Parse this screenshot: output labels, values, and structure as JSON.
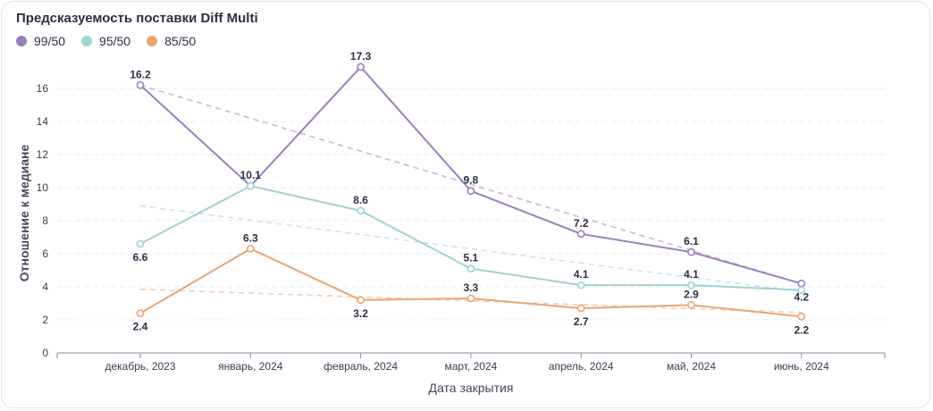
{
  "chart_data": {
    "type": "line",
    "title": "Предсказуемость поставки Diff Multi",
    "xlabel": "Дата закрытия",
    "ylabel": "Отношение к медиане",
    "ylim": [
      0,
      18
    ],
    "yticks": [
      "0",
      "2",
      "4",
      "6",
      "8",
      "10",
      "12",
      "14",
      "16"
    ],
    "categories": [
      "декабрь, 2023",
      "январь, 2024",
      "февраль, 2024",
      "март, 2024",
      "апрель, 2024",
      "май, 2024",
      "июнь, 2024"
    ],
    "legend_position": "top-left",
    "grid": true,
    "series": [
      {
        "name": "99/50",
        "color": "#9b7fbd",
        "values": [
          16.2,
          10.1,
          17.3,
          9.8,
          7.2,
          6.1,
          4.2
        ],
        "labels": [
          "16.2",
          "10.1",
          "17.3",
          "9.8",
          "7.2",
          "6.1",
          "4.2"
        ],
        "label_side": [
          "above",
          "above",
          "above",
          "above",
          "above",
          "above",
          "below"
        ],
        "trend": [
          16.2,
          4.2
        ]
      },
      {
        "name": "95/50",
        "color": "#9fd3d3",
        "values": [
          6.6,
          10.1,
          8.6,
          5.1,
          4.1,
          4.1,
          3.8
        ],
        "labels": [
          "6.6",
          "",
          "8.6",
          "5.1",
          "4.1",
          "4.1",
          ""
        ],
        "label_side": [
          "below",
          "above",
          "above",
          "above",
          "above",
          "above",
          "below"
        ],
        "trend": [
          8.9,
          3.7
        ]
      },
      {
        "name": "85/50",
        "color": "#e8a673",
        "values": [
          2.4,
          6.3,
          3.2,
          3.3,
          2.7,
          2.9,
          2.2
        ],
        "labels": [
          "2.4",
          "6.3",
          "3.2",
          "3.3",
          "2.7",
          "2.9",
          "2.2"
        ],
        "label_side": [
          "below",
          "above",
          "below",
          "above",
          "below",
          "above",
          "below"
        ],
        "trend": [
          3.85,
          2.45
        ]
      }
    ]
  }
}
